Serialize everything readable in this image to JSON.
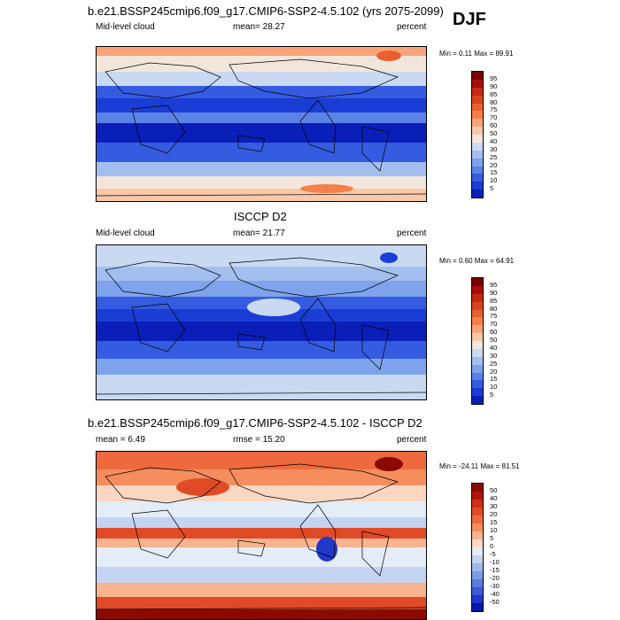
{
  "figure": {
    "season": "DJF",
    "main_title": "b.e21.BSSP245cmip6.f09_g17.CMIP6-SSP2-4.5.102 (yrs 2075-2099)"
  },
  "panels": [
    {
      "title": "",
      "left_label": "Mid-level cloud",
      "center_label": "mean=  28.27",
      "right_label": "percent",
      "minmax_label": "Min =   0.11 Max =  89.91",
      "colorbar_labels": [
        "95",
        "90",
        "85",
        "80",
        "75",
        "70",
        "60",
        "50",
        "40",
        "30",
        "25",
        "20",
        "15",
        "10",
        "5"
      ],
      "colorbar_colors": [
        "#7a0000",
        "#a50f0b",
        "#c42a12",
        "#d8431f",
        "#e8602f",
        "#f4804a",
        "#f8a37a",
        "#f9c8a9",
        "#f2e6dc",
        "#c9d9f2",
        "#a3bff0",
        "#7ea3ec",
        "#5b83e6",
        "#355ce0",
        "#1a3dd6",
        "#0a1fb8"
      ]
    },
    {
      "title": "ISCCP D2",
      "left_label": "Mid-level cloud",
      "center_label": "mean=  21.77",
      "right_label": "percent",
      "minmax_label": "Min =   0.60 Max =  64.91",
      "colorbar_labels": [
        "95",
        "90",
        "85",
        "80",
        "75",
        "70",
        "60",
        "50",
        "40",
        "30",
        "25",
        "20",
        "15",
        "10",
        "5"
      ],
      "colorbar_colors": [
        "#7a0000",
        "#a50f0b",
        "#c42a12",
        "#d8431f",
        "#e8602f",
        "#f4804a",
        "#f8a37a",
        "#f9c8a9",
        "#f2e6dc",
        "#c9d9f2",
        "#a3bff0",
        "#7ea3ec",
        "#5b83e6",
        "#355ce0",
        "#1a3dd6",
        "#0a1fb8"
      ]
    },
    {
      "title": "b.e21.BSSP245cmip6.f09_g17.CMIP6-SSP2-4.5.102 - ISCCP D2",
      "left_label": "mean =   6.49",
      "center_label": "rmse =  15.20",
      "right_label": "percent",
      "minmax_label": "Min = -24.11 Max =  81.51",
      "colorbar_labels": [
        "50",
        "40",
        "30",
        "20",
        "15",
        "10",
        "5",
        "0",
        "-5",
        "-10",
        "-15",
        "-20",
        "-30",
        "-40",
        "-50"
      ],
      "colorbar_colors": [
        "#8a0a00",
        "#b0150a",
        "#cf2e16",
        "#e04a26",
        "#ee6a3e",
        "#f58d5f",
        "#f9b38e",
        "#fbd7c2",
        "#e4ecf7",
        "#c3d4f3",
        "#9fb8ee",
        "#7e9be8",
        "#5c7be2",
        "#3d59d8",
        "#2238c8",
        "#0b16a8"
      ]
    }
  ]
}
